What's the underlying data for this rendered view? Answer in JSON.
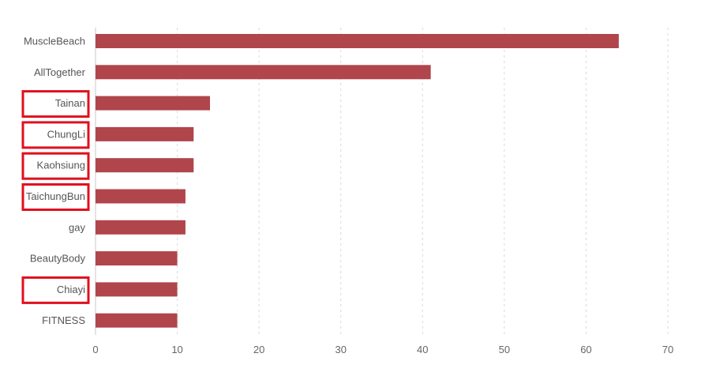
{
  "chart_data": {
    "type": "bar",
    "orientation": "horizontal",
    "title": "",
    "xlabel": "",
    "ylabel": "",
    "categories": [
      "MuscleBeach",
      "AllTogether",
      "Tainan",
      "ChungLi",
      "Kaohsiung",
      "TaichungBun",
      "gay",
      "BeautyBody",
      "Chiayi",
      "FITNESS"
    ],
    "values": [
      64,
      41,
      14,
      12,
      12,
      11,
      11,
      10,
      10,
      10
    ],
    "xlim": [
      0,
      70
    ],
    "xticks": [
      0,
      10,
      20,
      30,
      40,
      50,
      60,
      70
    ],
    "grid": true,
    "bar_color": "#b0454c",
    "highlighted_categories": [
      "Tainan",
      "ChungLi",
      "Kaohsiung",
      "TaichungBun",
      "Chiayi"
    ],
    "highlight_color": "#e0101e"
  }
}
